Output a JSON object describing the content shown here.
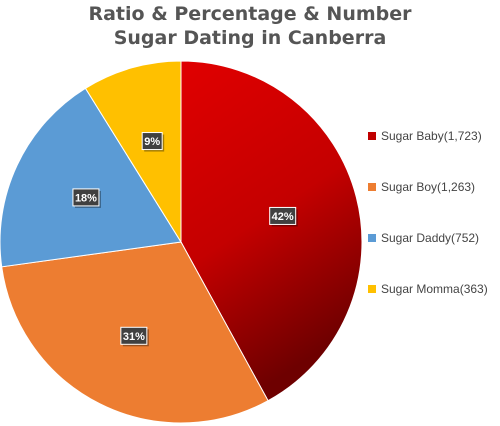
{
  "chart_data": {
    "type": "pie",
    "title_lines": [
      "Ratio & Percentage & Number",
      "Sugar Dating in Canberra"
    ],
    "legend_position": "right",
    "slices": [
      {
        "label": "Sugar Baby(1,723)",
        "value": 1723,
        "percent_label": "42%",
        "color": "#c00000"
      },
      {
        "label": "Sugar Boy(1,263)",
        "value": 1263,
        "percent_label": "31%",
        "color": "#ed7d31"
      },
      {
        "label": "Sugar Daddy(752)",
        "value": 752,
        "percent_label": "18%",
        "color": "#5b9bd5"
      },
      {
        "label": "Sugar Momma(363)",
        "value": 363,
        "percent_label": "9%",
        "color": "#ffc000"
      }
    ]
  }
}
